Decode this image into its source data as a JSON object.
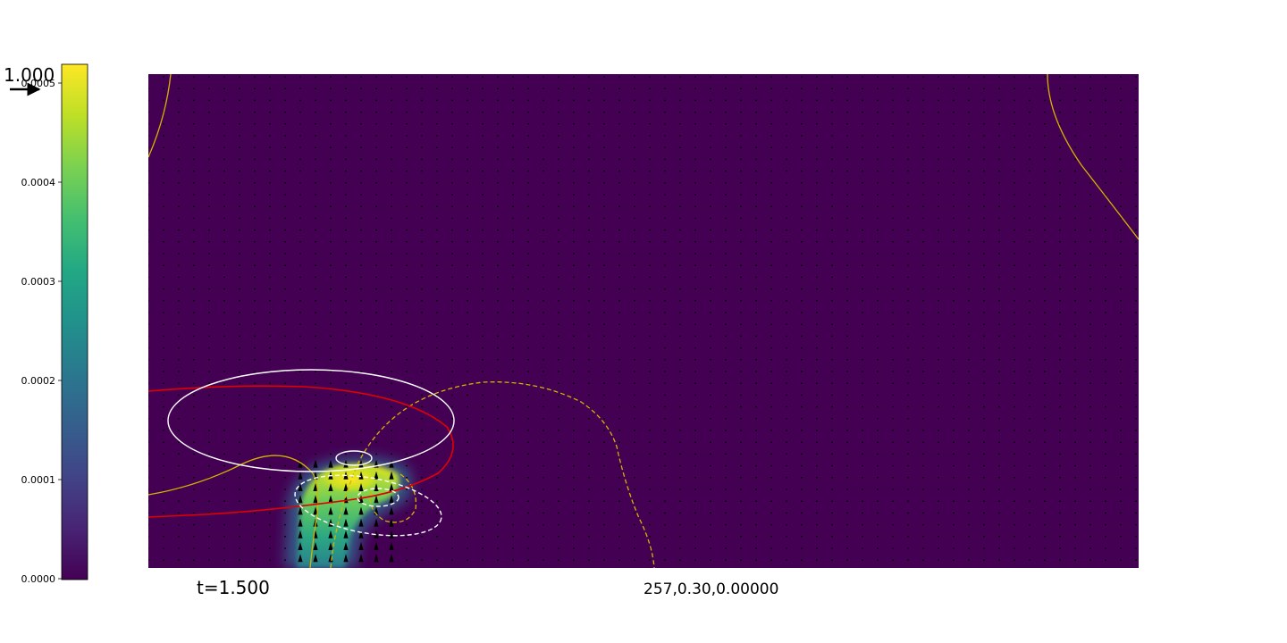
{
  "chart_data": {
    "type": "heatmap",
    "colormap": "viridis",
    "colorbar": {
      "range": [
        0.0,
        0.0005
      ],
      "tick_values": [
        0.0,
        0.0001,
        0.0002,
        0.0003,
        0.0004,
        0.0005
      ],
      "tick_labels": [
        "0.0000",
        "0.0001",
        "0.0002",
        "0.0003",
        "0.0004",
        "0.0005"
      ]
    },
    "quiver_key_label": "1.000",
    "time_label": "t=1.500",
    "info_label": "257,0.30,0.00000",
    "grid": false,
    "contour_colors": {
      "white": "#ffffff",
      "red": "#e00000",
      "gold": "#d4b400",
      "arrows": "#000000",
      "background": "#440154"
    }
  }
}
